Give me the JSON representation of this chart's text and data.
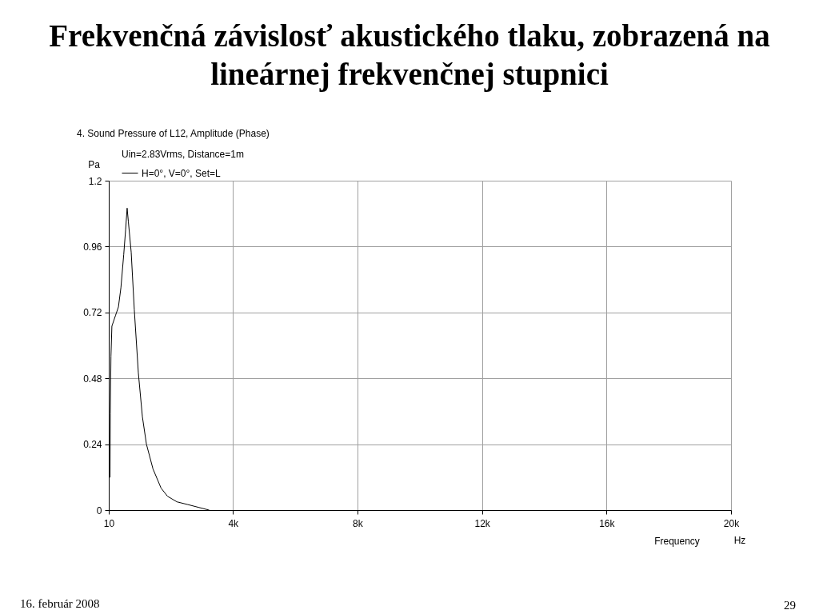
{
  "chart_data": {
    "type": "line",
    "title": "Frekvenčná závislosť akustického tlaku, zobrazená na lineárnej frekvenčnej stupnici",
    "subtitle": "4. Sound Pressure of L12, Amplitude (Phase)",
    "xlabel": "Frequency",
    "ylabel": "Pa",
    "annotations": [
      "Uin=2.83Vrms, Distance=1m",
      "Hz",
      "16. február 2008",
      "29"
    ],
    "x": [
      50,
      60,
      80,
      110,
      230,
      320,
      400,
      490,
      550,
      600,
      640,
      730,
      830,
      960,
      1090,
      1220,
      1430,
      1690,
      1900,
      2200,
      2550,
      2890,
      3230
    ],
    "series": [
      {
        "name": "H=0°, V=0°, Set=L",
        "color": "#000000",
        "values": [
          0.12,
          0.35,
          0.56,
          0.67,
          0.71,
          0.74,
          0.81,
          0.93,
          1.02,
          1.1,
          1.05,
          0.94,
          0.73,
          0.5,
          0.34,
          0.24,
          0.15,
          0.08,
          0.05,
          0.03,
          0.02,
          0.01,
          0
        ]
      }
    ],
    "xlim": [
      10,
      20000
    ],
    "xticks": [
      10,
      {
        "value": 4000,
        "label": "4k"
      },
      {
        "value": 8000,
        "label": "8k"
      },
      {
        "value": 12000,
        "label": "12k"
      },
      {
        "value": 16000,
        "label": "16k"
      },
      {
        "value": 20000,
        "label": "20k"
      }
    ],
    "ylim": [
      0,
      1.2
    ],
    "yticks": [
      0,
      0.24,
      0.48,
      0.72,
      0.96,
      1.2
    ],
    "grid": true,
    "legend": "top left",
    "line_style": "solid"
  }
}
